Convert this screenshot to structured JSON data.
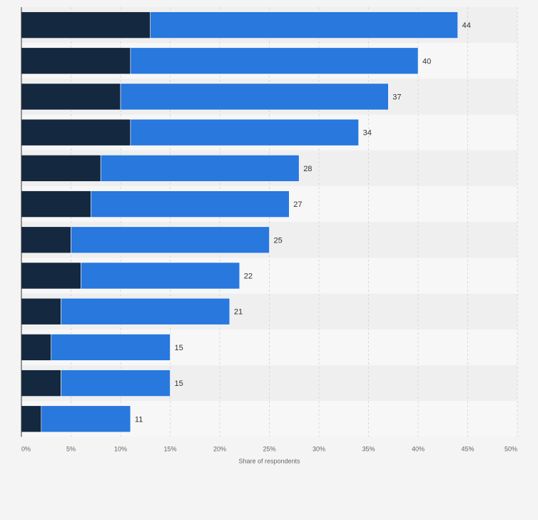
{
  "chart_data": {
    "type": "bar",
    "orientation": "horizontal",
    "stacked": true,
    "title": "",
    "xlabel": "Share of respondents",
    "ylabel": "",
    "xlim": [
      0,
      50
    ],
    "x_ticks": [
      "0%",
      "5%",
      "10%",
      "15%",
      "20%",
      "25%",
      "30%",
      "35%",
      "40%",
      "45%",
      "50%"
    ],
    "grid": true,
    "legend": "none",
    "categories": [
      "",
      "",
      "",
      "",
      "",
      "",
      "",
      "",
      "",
      "",
      "",
      ""
    ],
    "series": [
      {
        "color": "#14283f",
        "values": [
          13,
          11,
          10,
          11,
          8,
          7,
          5,
          6,
          4,
          3,
          4,
          2
        ]
      },
      {
        "color": "#2878de",
        "values": [
          31,
          29,
          27,
          23,
          20,
          20,
          20,
          16,
          17,
          12,
          11,
          9
        ]
      }
    ],
    "totals": [
      44,
      40,
      37,
      34,
      28,
      27,
      25,
      22,
      21,
      15,
      15,
      11
    ],
    "total_labels": [
      "44",
      "40",
      "37",
      "34",
      "28",
      "27",
      "25",
      "22",
      "21",
      "15",
      "15",
      "11"
    ]
  },
  "colors": {
    "page_background": "#f4f4f4",
    "band_light": "#f7f7f7",
    "band_dark": "#efefef",
    "grid": "#d8d8d8",
    "axis": "#333333"
  }
}
